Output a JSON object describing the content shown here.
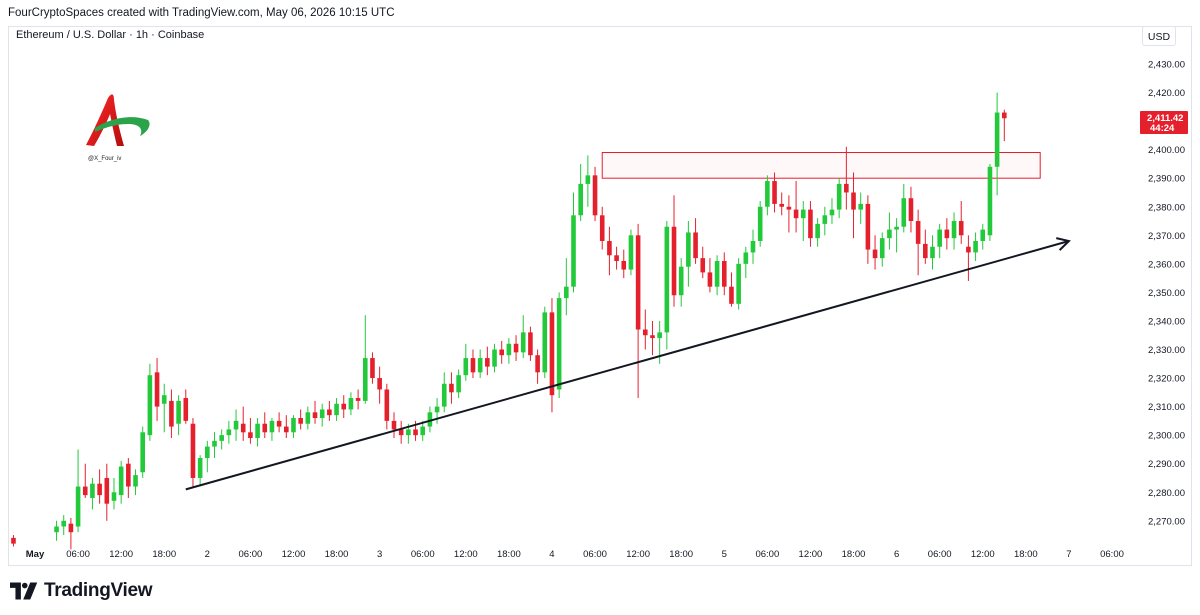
{
  "header": {
    "credit": "FourCryptoSpaces created with TradingView.com, May 06, 2026 10:15 UTC",
    "symbol": "Ethereum / U.S. Dollar · 1h · Coinbase",
    "currency": "USD"
  },
  "logo": {
    "handle": "@X_Four_iv"
  },
  "footer": {
    "brand": "TradingView"
  },
  "colors": {
    "up": "#22c93a",
    "down": "#e5202d",
    "trend": "#131722",
    "zone": "#e5202d",
    "tag": "#e5202d"
  },
  "chart_data": {
    "type": "candlestick",
    "symbol": "ETH/USD",
    "interval": "1h",
    "ylim": [
      2262,
      2438
    ],
    "y_ticks": [
      2270,
      2280,
      2290,
      2300,
      2310,
      2320,
      2330,
      2340,
      2350,
      2360,
      2370,
      2380,
      2390,
      2400,
      2410,
      2420,
      2430
    ],
    "y_tick_labels": [
      "2,270.00",
      "2,280.00",
      "2,290.00",
      "2,300.00",
      "2,310.00",
      "2,320.00",
      "2,330.00",
      "2,340.00",
      "2,350.00",
      "2,360.00",
      "2,370.00",
      "2,380.00",
      "2,390.00",
      "2,400.00",
      "2,410.00",
      "2,420.00",
      "2,430.00"
    ],
    "x_ticks": [
      {
        "label": "May",
        "hour": 0,
        "bold": true
      },
      {
        "label": "06:00",
        "hour": 6
      },
      {
        "label": "12:00",
        "hour": 12
      },
      {
        "label": "18:00",
        "hour": 18
      },
      {
        "label": "2",
        "hour": 24
      },
      {
        "label": "06:00",
        "hour": 30
      },
      {
        "label": "12:00",
        "hour": 36
      },
      {
        "label": "18:00",
        "hour": 42
      },
      {
        "label": "3",
        "hour": 48
      },
      {
        "label": "06:00",
        "hour": 54
      },
      {
        "label": "12:00",
        "hour": 60
      },
      {
        "label": "18:00",
        "hour": 66
      },
      {
        "label": "4",
        "hour": 72
      },
      {
        "label": "06:00",
        "hour": 78
      },
      {
        "label": "12:00",
        "hour": 84
      },
      {
        "label": "18:00",
        "hour": 90
      },
      {
        "label": "5",
        "hour": 96
      },
      {
        "label": "06:00",
        "hour": 102
      },
      {
        "label": "12:00",
        "hour": 108
      },
      {
        "label": "18:00",
        "hour": 114
      },
      {
        "label": "6",
        "hour": 120
      },
      {
        "label": "06:00",
        "hour": 126
      },
      {
        "label": "12:00",
        "hour": 132
      },
      {
        "label": "18:00",
        "hour": 138
      },
      {
        "label": "7",
        "hour": 144
      },
      {
        "label": "06:00",
        "hour": 150
      }
    ],
    "last_price": {
      "value": 2411.42,
      "label": "2,411.42",
      "countdown": "44:24"
    },
    "resistance_zone": {
      "x_start_hour": 79,
      "x_end_hour": 140,
      "y_low": 2390,
      "y_high": 2399
    },
    "trendline": {
      "start": {
        "hour": 21,
        "price": 2281
      },
      "end": {
        "hour": 144,
        "price": 2368
      }
    },
    "candles": [
      {
        "h": -3,
        "o": 2264,
        "hi": 2265,
        "lo": 2261,
        "c": 2262
      },
      {
        "h": 3,
        "o": 2266,
        "hi": 2270,
        "lo": 2263,
        "c": 2268
      },
      {
        "h": 4,
        "o": 2268,
        "hi": 2272,
        "lo": 2265,
        "c": 2270
      },
      {
        "h": 5,
        "o": 2269,
        "hi": 2271,
        "lo": 2260,
        "c": 2266
      },
      {
        "h": 6,
        "o": 2268,
        "hi": 2295,
        "lo": 2266,
        "c": 2282
      },
      {
        "h": 7,
        "o": 2282,
        "hi": 2290,
        "lo": 2278,
        "c": 2279
      },
      {
        "h": 8,
        "o": 2278,
        "hi": 2285,
        "lo": 2274,
        "c": 2283
      },
      {
        "h": 9,
        "o": 2283,
        "hi": 2288,
        "lo": 2276,
        "c": 2279
      },
      {
        "h": 10,
        "o": 2285,
        "hi": 2290,
        "lo": 2270,
        "c": 2276
      },
      {
        "h": 11,
        "o": 2277,
        "hi": 2285,
        "lo": 2274,
        "c": 2280
      },
      {
        "h": 12,
        "o": 2279,
        "hi": 2291,
        "lo": 2276,
        "c": 2289
      },
      {
        "h": 13,
        "o": 2290,
        "hi": 2292,
        "lo": 2278,
        "c": 2282
      },
      {
        "h": 14,
        "o": 2282,
        "hi": 2288,
        "lo": 2279,
        "c": 2286
      },
      {
        "h": 15,
        "o": 2287,
        "hi": 2303,
        "lo": 2285,
        "c": 2301
      },
      {
        "h": 16,
        "o": 2300,
        "hi": 2325,
        "lo": 2298,
        "c": 2321
      },
      {
        "h": 17,
        "o": 2322,
        "hi": 2327,
        "lo": 2305,
        "c": 2310
      },
      {
        "h": 18,
        "o": 2311,
        "hi": 2318,
        "lo": 2301,
        "c": 2314
      },
      {
        "h": 19,
        "o": 2312,
        "hi": 2316,
        "lo": 2299,
        "c": 2303
      },
      {
        "h": 20,
        "o": 2304,
        "hi": 2314,
        "lo": 2300,
        "c": 2312
      },
      {
        "h": 21,
        "o": 2313,
        "hi": 2316,
        "lo": 2304,
        "c": 2305
      },
      {
        "h": 22,
        "o": 2304,
        "hi": 2306,
        "lo": 2282,
        "c": 2285
      },
      {
        "h": 23,
        "o": 2285,
        "hi": 2293,
        "lo": 2282,
        "c": 2292
      },
      {
        "h": 24,
        "o": 2292,
        "hi": 2298,
        "lo": 2287,
        "c": 2296
      },
      {
        "h": 25,
        "o": 2296,
        "hi": 2301,
        "lo": 2292,
        "c": 2298
      },
      {
        "h": 26,
        "o": 2298,
        "hi": 2302,
        "lo": 2295,
        "c": 2300
      },
      {
        "h": 27,
        "o": 2300,
        "hi": 2305,
        "lo": 2297,
        "c": 2302
      },
      {
        "h": 28,
        "o": 2302,
        "hi": 2309,
        "lo": 2298,
        "c": 2305
      },
      {
        "h": 29,
        "o": 2304,
        "hi": 2310,
        "lo": 2298,
        "c": 2301
      },
      {
        "h": 30,
        "o": 2301,
        "hi": 2306,
        "lo": 2297,
        "c": 2299
      },
      {
        "h": 31,
        "o": 2299,
        "hi": 2306,
        "lo": 2296,
        "c": 2304
      },
      {
        "h": 32,
        "o": 2304,
        "hi": 2308,
        "lo": 2299,
        "c": 2301
      },
      {
        "h": 33,
        "o": 2301,
        "hi": 2306,
        "lo": 2298,
        "c": 2305
      },
      {
        "h": 34,
        "o": 2305,
        "hi": 2308,
        "lo": 2301,
        "c": 2303
      },
      {
        "h": 35,
        "o": 2303,
        "hi": 2307,
        "lo": 2299,
        "c": 2301
      },
      {
        "h": 36,
        "o": 2301,
        "hi": 2307,
        "lo": 2299,
        "c": 2306
      },
      {
        "h": 37,
        "o": 2306,
        "hi": 2309,
        "lo": 2302,
        "c": 2304
      },
      {
        "h": 38,
        "o": 2304,
        "hi": 2310,
        "lo": 2302,
        "c": 2308
      },
      {
        "h": 39,
        "o": 2308,
        "hi": 2312,
        "lo": 2304,
        "c": 2306
      },
      {
        "h": 40,
        "o": 2306,
        "hi": 2311,
        "lo": 2303,
        "c": 2309
      },
      {
        "h": 41,
        "o": 2309,
        "hi": 2312,
        "lo": 2305,
        "c": 2307
      },
      {
        "h": 42,
        "o": 2307,
        "hi": 2313,
        "lo": 2305,
        "c": 2311
      },
      {
        "h": 43,
        "o": 2311,
        "hi": 2314,
        "lo": 2306,
        "c": 2309
      },
      {
        "h": 44,
        "o": 2309,
        "hi": 2315,
        "lo": 2307,
        "c": 2313
      },
      {
        "h": 45,
        "o": 2313,
        "hi": 2316,
        "lo": 2309,
        "c": 2312
      },
      {
        "h": 46,
        "o": 2312,
        "hi": 2342,
        "lo": 2311,
        "c": 2327
      },
      {
        "h": 47,
        "o": 2327,
        "hi": 2329,
        "lo": 2318,
        "c": 2320
      },
      {
        "h": 48,
        "o": 2320,
        "hi": 2324,
        "lo": 2311,
        "c": 2316
      },
      {
        "h": 49,
        "o": 2316,
        "hi": 2318,
        "lo": 2302,
        "c": 2305
      },
      {
        "h": 50,
        "o": 2305,
        "hi": 2308,
        "lo": 2299,
        "c": 2302
      },
      {
        "h": 51,
        "o": 2302,
        "hi": 2305,
        "lo": 2297,
        "c": 2300
      },
      {
        "h": 52,
        "o": 2300,
        "hi": 2304,
        "lo": 2297,
        "c": 2302
      },
      {
        "h": 53,
        "o": 2302,
        "hi": 2305,
        "lo": 2298,
        "c": 2300
      },
      {
        "h": 54,
        "o": 2300,
        "hi": 2305,
        "lo": 2298,
        "c": 2303
      },
      {
        "h": 55,
        "o": 2303,
        "hi": 2310,
        "lo": 2301,
        "c": 2308
      },
      {
        "h": 56,
        "o": 2308,
        "hi": 2313,
        "lo": 2304,
        "c": 2310
      },
      {
        "h": 57,
        "o": 2310,
        "hi": 2322,
        "lo": 2308,
        "c": 2318
      },
      {
        "h": 58,
        "o": 2318,
        "hi": 2322,
        "lo": 2311,
        "c": 2315
      },
      {
        "h": 59,
        "o": 2315,
        "hi": 2323,
        "lo": 2313,
        "c": 2321
      },
      {
        "h": 60,
        "o": 2321,
        "hi": 2332,
        "lo": 2319,
        "c": 2327
      },
      {
        "h": 61,
        "o": 2327,
        "hi": 2330,
        "lo": 2320,
        "c": 2322
      },
      {
        "h": 62,
        "o": 2322,
        "hi": 2330,
        "lo": 2320,
        "c": 2327
      },
      {
        "h": 63,
        "o": 2327,
        "hi": 2331,
        "lo": 2321,
        "c": 2324
      },
      {
        "h": 64,
        "o": 2324,
        "hi": 2332,
        "lo": 2322,
        "c": 2330
      },
      {
        "h": 65,
        "o": 2330,
        "hi": 2333,
        "lo": 2325,
        "c": 2328
      },
      {
        "h": 66,
        "o": 2328,
        "hi": 2334,
        "lo": 2325,
        "c": 2332
      },
      {
        "h": 67,
        "o": 2332,
        "hi": 2335,
        "lo": 2326,
        "c": 2329
      },
      {
        "h": 68,
        "o": 2329,
        "hi": 2342,
        "lo": 2327,
        "c": 2336
      },
      {
        "h": 69,
        "o": 2336,
        "hi": 2338,
        "lo": 2326,
        "c": 2328
      },
      {
        "h": 70,
        "o": 2328,
        "hi": 2330,
        "lo": 2318,
        "c": 2322
      },
      {
        "h": 71,
        "o": 2322,
        "hi": 2345,
        "lo": 2320,
        "c": 2343
      },
      {
        "h": 72,
        "o": 2343,
        "hi": 2348,
        "lo": 2308,
        "c": 2314
      },
      {
        "h": 73,
        "o": 2316,
        "hi": 2350,
        "lo": 2313,
        "c": 2348
      },
      {
        "h": 74,
        "o": 2348,
        "hi": 2362,
        "lo": 2342,
        "c": 2352
      },
      {
        "h": 75,
        "o": 2352,
        "hi": 2385,
        "lo": 2350,
        "c": 2377
      },
      {
        "h": 76,
        "o": 2377,
        "hi": 2395,
        "lo": 2375,
        "c": 2388
      },
      {
        "h": 77,
        "o": 2388,
        "hi": 2398,
        "lo": 2380,
        "c": 2391
      },
      {
        "h": 78,
        "o": 2391,
        "hi": 2394,
        "lo": 2375,
        "c": 2377
      },
      {
        "h": 79,
        "o": 2377,
        "hi": 2380,
        "lo": 2365,
        "c": 2368
      },
      {
        "h": 80,
        "o": 2368,
        "hi": 2373,
        "lo": 2356,
        "c": 2363
      },
      {
        "h": 81,
        "o": 2363,
        "hi": 2366,
        "lo": 2358,
        "c": 2361
      },
      {
        "h": 82,
        "o": 2361,
        "hi": 2365,
        "lo": 2355,
        "c": 2358
      },
      {
        "h": 83,
        "o": 2358,
        "hi": 2372,
        "lo": 2356,
        "c": 2370
      },
      {
        "h": 84,
        "o": 2370,
        "hi": 2374,
        "lo": 2313,
        "c": 2337
      },
      {
        "h": 85,
        "o": 2337,
        "hi": 2344,
        "lo": 2330,
        "c": 2335
      },
      {
        "h": 86,
        "o": 2335,
        "hi": 2340,
        "lo": 2328,
        "c": 2334
      },
      {
        "h": 87,
        "o": 2334,
        "hi": 2340,
        "lo": 2325,
        "c": 2336
      },
      {
        "h": 88,
        "o": 2336,
        "hi": 2375,
        "lo": 2330,
        "c": 2373
      },
      {
        "h": 89,
        "o": 2373,
        "hi": 2384,
        "lo": 2345,
        "c": 2349
      },
      {
        "h": 90,
        "o": 2349,
        "hi": 2362,
        "lo": 2345,
        "c": 2359
      },
      {
        "h": 91,
        "o": 2359,
        "hi": 2375,
        "lo": 2352,
        "c": 2371
      },
      {
        "h": 92,
        "o": 2371,
        "hi": 2376,
        "lo": 2360,
        "c": 2362
      },
      {
        "h": 93,
        "o": 2362,
        "hi": 2366,
        "lo": 2355,
        "c": 2357
      },
      {
        "h": 94,
        "o": 2357,
        "hi": 2362,
        "lo": 2350,
        "c": 2352
      },
      {
        "h": 95,
        "o": 2352,
        "hi": 2363,
        "lo": 2349,
        "c": 2361
      },
      {
        "h": 96,
        "o": 2361,
        "hi": 2364,
        "lo": 2349,
        "c": 2352
      },
      {
        "h": 97,
        "o": 2352,
        "hi": 2357,
        "lo": 2345,
        "c": 2346
      },
      {
        "h": 98,
        "o": 2346,
        "hi": 2362,
        "lo": 2344,
        "c": 2360
      },
      {
        "h": 99,
        "o": 2360,
        "hi": 2366,
        "lo": 2355,
        "c": 2364
      },
      {
        "h": 100,
        "o": 2364,
        "hi": 2372,
        "lo": 2360,
        "c": 2368
      },
      {
        "h": 101,
        "o": 2368,
        "hi": 2382,
        "lo": 2366,
        "c": 2380
      },
      {
        "h": 102,
        "o": 2380,
        "hi": 2391,
        "lo": 2377,
        "c": 2389
      },
      {
        "h": 103,
        "o": 2389,
        "hi": 2392,
        "lo": 2378,
        "c": 2381
      },
      {
        "h": 104,
        "o": 2381,
        "hi": 2385,
        "lo": 2377,
        "c": 2380
      },
      {
        "h": 105,
        "o": 2380,
        "hi": 2384,
        "lo": 2371,
        "c": 2379
      },
      {
        "h": 106,
        "o": 2379,
        "hi": 2389,
        "lo": 2371,
        "c": 2376
      },
      {
        "h": 107,
        "o": 2376,
        "hi": 2382,
        "lo": 2368,
        "c": 2379
      },
      {
        "h": 108,
        "o": 2379,
        "hi": 2382,
        "lo": 2366,
        "c": 2369
      },
      {
        "h": 109,
        "o": 2369,
        "hi": 2376,
        "lo": 2366,
        "c": 2374
      },
      {
        "h": 110,
        "o": 2374,
        "hi": 2380,
        "lo": 2370,
        "c": 2377
      },
      {
        "h": 111,
        "o": 2377,
        "hi": 2383,
        "lo": 2374,
        "c": 2379
      },
      {
        "h": 112,
        "o": 2379,
        "hi": 2390,
        "lo": 2376,
        "c": 2388
      },
      {
        "h": 113,
        "o": 2388,
        "hi": 2401,
        "lo": 2379,
        "c": 2385
      },
      {
        "h": 114,
        "o": 2385,
        "hi": 2392,
        "lo": 2369,
        "c": 2379
      },
      {
        "h": 115,
        "o": 2379,
        "hi": 2385,
        "lo": 2374,
        "c": 2381
      },
      {
        "h": 116,
        "o": 2381,
        "hi": 2384,
        "lo": 2360,
        "c": 2365
      },
      {
        "h": 117,
        "o": 2365,
        "hi": 2370,
        "lo": 2358,
        "c": 2362
      },
      {
        "h": 118,
        "o": 2362,
        "hi": 2371,
        "lo": 2359,
        "c": 2369
      },
      {
        "h": 119,
        "o": 2369,
        "hi": 2378,
        "lo": 2365,
        "c": 2372
      },
      {
        "h": 120,
        "o": 2372,
        "hi": 2376,
        "lo": 2364,
        "c": 2373
      },
      {
        "h": 121,
        "o": 2373,
        "hi": 2388,
        "lo": 2371,
        "c": 2383
      },
      {
        "h": 122,
        "o": 2383,
        "hi": 2387,
        "lo": 2371,
        "c": 2375
      },
      {
        "h": 123,
        "o": 2375,
        "hi": 2379,
        "lo": 2356,
        "c": 2367
      },
      {
        "h": 124,
        "o": 2367,
        "hi": 2372,
        "lo": 2360,
        "c": 2362
      },
      {
        "h": 125,
        "o": 2362,
        "hi": 2370,
        "lo": 2358,
        "c": 2366
      },
      {
        "h": 126,
        "o": 2366,
        "hi": 2374,
        "lo": 2362,
        "c": 2372
      },
      {
        "h": 127,
        "o": 2372,
        "hi": 2376,
        "lo": 2365,
        "c": 2369
      },
      {
        "h": 128,
        "o": 2369,
        "hi": 2378,
        "lo": 2365,
        "c": 2375
      },
      {
        "h": 129,
        "o": 2375,
        "hi": 2382,
        "lo": 2367,
        "c": 2370
      },
      {
        "h": 130,
        "o": 2366,
        "hi": 2370,
        "lo": 2354,
        "c": 2364
      },
      {
        "h": 131,
        "o": 2364,
        "hi": 2371,
        "lo": 2361,
        "c": 2368
      },
      {
        "h": 132,
        "o": 2368,
        "hi": 2374,
        "lo": 2365,
        "c": 2372
      },
      {
        "h": 133,
        "o": 2370,
        "hi": 2395,
        "lo": 2368,
        "c": 2394
      },
      {
        "h": 134,
        "o": 2394,
        "hi": 2420,
        "lo": 2384,
        "c": 2413
      },
      {
        "h": 135,
        "o": 2413,
        "hi": 2414,
        "lo": 2403,
        "c": 2411
      }
    ]
  }
}
